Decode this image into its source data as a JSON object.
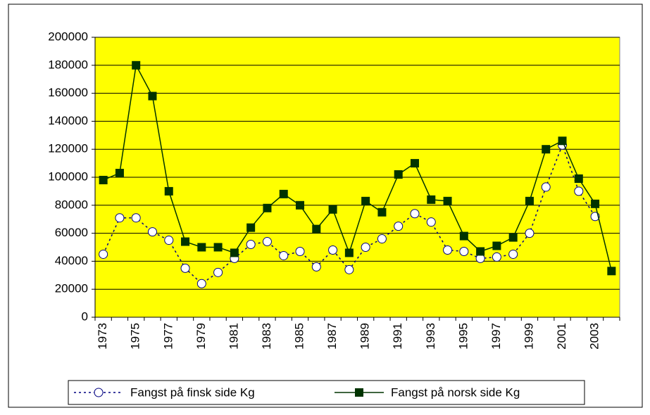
{
  "chart_data": {
    "type": "line",
    "categories": [
      "1973",
      null,
      "1975",
      null,
      "1977",
      null,
      "1979",
      null,
      "1981",
      null,
      "1983",
      null,
      "1985",
      null,
      "1987",
      null,
      "1989",
      null,
      "1991",
      null,
      "1993",
      null,
      "1995",
      null,
      "1997",
      null,
      "1999",
      null,
      "2001",
      null,
      "2003",
      null
    ],
    "series": [
      {
        "name": "Fangst på finsk side Kg",
        "color": "#000080",
        "values": [
          45000,
          71000,
          71000,
          61000,
          55000,
          35000,
          24000,
          32000,
          42000,
          52000,
          54000,
          44000,
          47000,
          36000,
          48000,
          34000,
          50000,
          56000,
          65000,
          74000,
          68000,
          48000,
          47000,
          42000,
          43000,
          45000,
          60000,
          93000,
          123000,
          90000,
          72000,
          null
        ]
      },
      {
        "name": "Fangst på norsk side Kg",
        "color": "#003300",
        "values": [
          98000,
          103000,
          180000,
          158000,
          90000,
          54000,
          50000,
          50000,
          46000,
          64000,
          78000,
          88000,
          80000,
          63000,
          77000,
          46000,
          83000,
          75000,
          102000,
          110000,
          84000,
          83000,
          58000,
          47000,
          51000,
          57000,
          83000,
          120000,
          126000,
          99000,
          81000,
          33000
        ]
      }
    ],
    "ylim": [
      0,
      200000
    ],
    "yticks": [
      0,
      20000,
      40000,
      60000,
      80000,
      100000,
      120000,
      140000,
      160000,
      180000,
      200000
    ],
    "grid": true,
    "background": "#ffff00",
    "legend": "bottom"
  }
}
